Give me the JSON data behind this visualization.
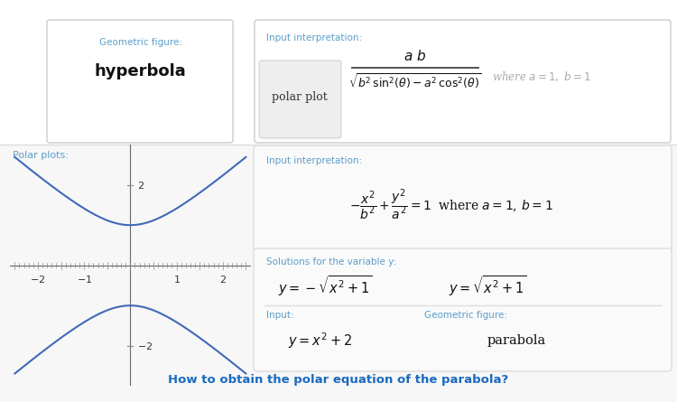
{
  "bg_color": "#ffffff",
  "teal_color": "#5b9ec9",
  "dark_text": "#222222",
  "gray_text": "#aaaaaa",
  "blue_link": "#1a6abf",
  "curve_color": "#4169b8",
  "geo_label": "Geometric figure:",
  "geo_value": "hyperbola",
  "input_interp_label": "Input interpretation:",
  "polar_plot_text": "polar plot",
  "polar_plots_label": "Polar plots:",
  "input_interp2_label": "Input interpretation:",
  "solutions_label": "Solutions for the variable y:",
  "input_label": "Input:",
  "geo_fig_label": "Geometric figure:",
  "geo_fig_val": "parabola",
  "bottom_question": "How to obtain the polar equation of the parabola?"
}
